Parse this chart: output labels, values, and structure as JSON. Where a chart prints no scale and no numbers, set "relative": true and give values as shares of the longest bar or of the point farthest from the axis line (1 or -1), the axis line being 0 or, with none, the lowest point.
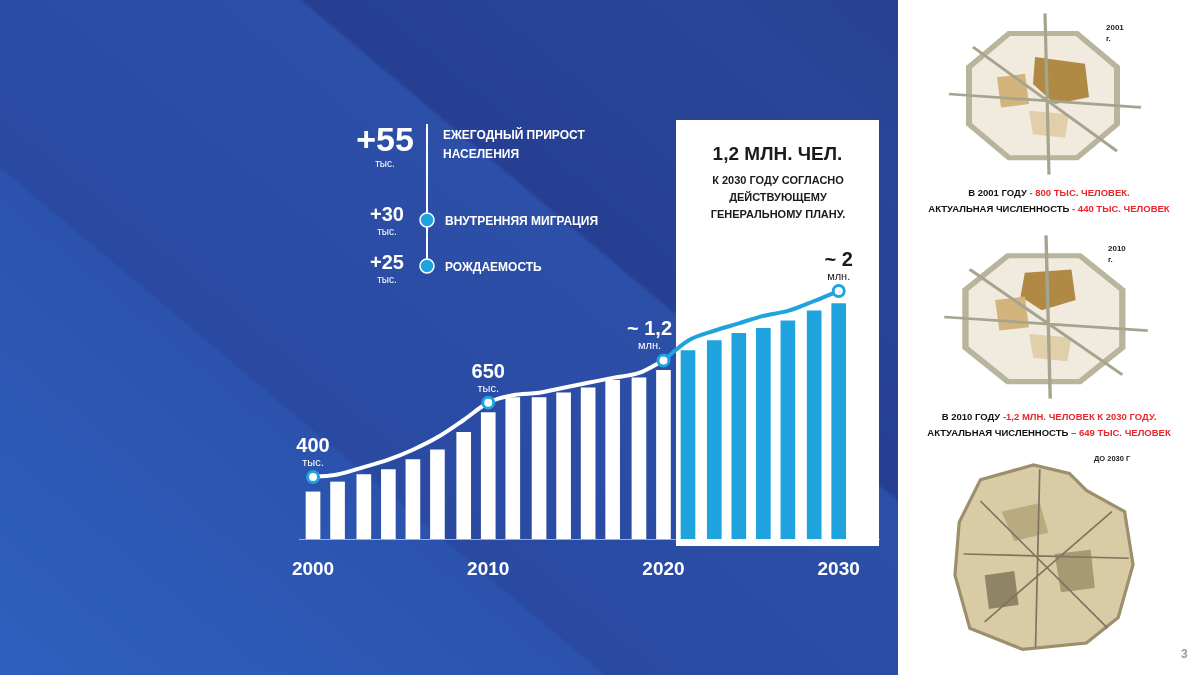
{
  "chart_data": {
    "type": "bar",
    "relative": true,
    "x": [
      2000,
      2001.4,
      2002.9,
      2004.3,
      2005.7,
      2007.1,
      2008.6,
      2010,
      2011.4,
      2012.9,
      2014.3,
      2015.7,
      2017.1,
      2018.6,
      2020,
      2021.4,
      2022.9,
      2024.3,
      2025.7,
      2027.1,
      2028.6,
      2030
    ],
    "xlim": [
      1999.2,
      2032.3
    ],
    "xticks": [
      2000,
      2010,
      2020,
      2030
    ],
    "series": [
      {
        "colors": [
          "#ffffff",
          "#ffffff",
          "#ffffff",
          "#ffffff",
          "#ffffff",
          "#ffffff",
          "#ffffff",
          "#ffffff",
          "#ffffff",
          "#ffffff",
          "#ffffff",
          "#ffffff",
          "#ffffff",
          "#ffffff",
          "#ffffff",
          "#1fa3df",
          "#1fa3df",
          "#1fa3df",
          "#1fa3df",
          "#1fa3df",
          "#1fa3df",
          "#1fa3df"
        ],
        "values": [
          0.19,
          0.23,
          0.26,
          0.28,
          0.32,
          0.36,
          0.43,
          0.51,
          0.57,
          0.57,
          0.59,
          0.61,
          0.64,
          0.65,
          0.68,
          0.76,
          0.8,
          0.83,
          0.85,
          0.88,
          0.92,
          0.95
        ]
      },
      {
        "type": "line",
        "color": "#ffffff",
        "x": [
          2000,
          2001.4,
          2002.9,
          2004.3,
          2005.7,
          2007.1,
          2008.6,
          2010,
          2011.4,
          2012.9,
          2014.3,
          2015.7,
          2017.1,
          2018.6,
          2020
        ],
        "values": [
          0.25,
          0.26,
          0.29,
          0.32,
          0.36,
          0.41,
          0.48,
          0.55,
          0.58,
          0.59,
          0.61,
          0.63,
          0.65,
          0.67,
          0.72
        ]
      },
      {
        "type": "line",
        "color": "#1fa3df",
        "x": [
          2020,
          2021.4,
          2022.9,
          2024.3,
          2025.7,
          2027.1,
          2028.6,
          2030
        ],
        "values": [
          0.72,
          0.8,
          0.84,
          0.87,
          0.9,
          0.92,
          0.96,
          1
        ]
      },
      {
        "type": "scatter",
        "x": [
          2000,
          2010,
          2020,
          2030
        ],
        "color": "#1fa3df",
        "marker": "circle",
        "values": [
          0.25,
          0.55,
          0.72,
          1
        ]
      }
    ],
    "annotations": [
      {
        "text": "400 тыс.",
        "x": 2000,
        "y": 0.25
      },
      {
        "text": "650 тыс.",
        "x": 2010,
        "y": 0.55
      },
      {
        "text": "~ 1,2 млн.",
        "x": 2020,
        "y": 0.72
      },
      {
        "text": "~ 2 млн.",
        "x": 2030,
        "y": 1
      },
      "+55 тыс.",
      "ЕЖЕГОДНЫЙ ПРИРОСТ НАСЕЛЕНИЯ",
      "+30 тыс.",
      "ВНУТРЕННЯЯ МИГРАЦИЯ",
      "+25 тыс.",
      "РОЖДАЕМОСТЬ",
      "1,2 МЛН. ЧЕЛ.",
      "К 2030 ГОДУ СОГЛАСНО ДЕЙСТВУЮЩЕМУ ГЕНЕРАЛЬНОМУ ПЛАНУ.",
      "2001 г.",
      "В 2001 ГОДУ",
      "- 800 ТЫС. ЧЕЛОВЕК.",
      "АКТУАЛЬНАЯ ЧИСЛЕННОСТЬ",
      "- 440 ТЫС. ЧЕЛОВЕК",
      "2010 г.",
      "В 2010 ГОДУ",
      "-1,2 МЛН. ЧЕЛОВЕК К 2030 ГОДУ.",
      "АКТУАЛЬНАЯ ЧИСЛЕННОСТЬ",
      "– 649 ТЫС. ЧЕЛОВЕК",
      "ДО 2030 Г",
      "3"
    ]
  }
}
